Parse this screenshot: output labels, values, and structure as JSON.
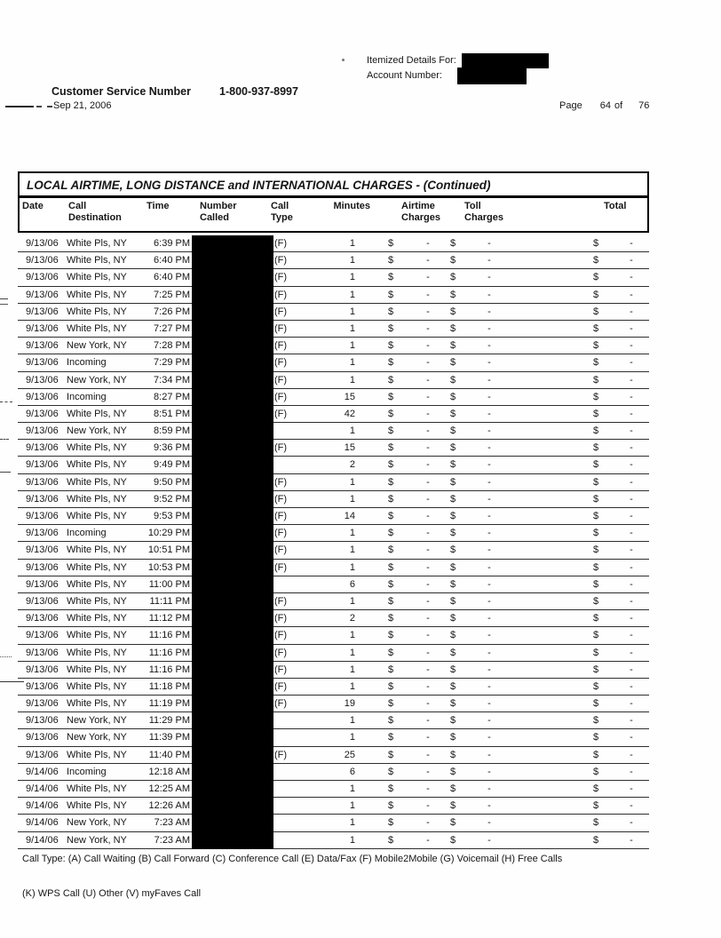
{
  "header": {
    "itemized_details_label": "Itemized Details For:",
    "account_number_label": "Account Number:",
    "customer_service_label": "Customer Service Number",
    "customer_service_number": "1-800-937-8997",
    "statement_date": "Sep 21, 2006",
    "pagination": {
      "label": "Page",
      "current": "64",
      "of": "of",
      "total": "76"
    }
  },
  "redactions": [
    "customer-name-block",
    "account-number-block",
    "numbers-called-column"
  ],
  "table": {
    "title": "LOCAL AIRTIME, LONG DISTANCE and INTERNATIONAL CHARGES  - (Continued)",
    "columns": [
      {
        "line1": "Date",
        "line2": ""
      },
      {
        "line1": "Call",
        "line2": "Destination"
      },
      {
        "line1": "Time",
        "line2": ""
      },
      {
        "line1": "Number",
        "line2": "Called"
      },
      {
        "line1": "Call",
        "line2": "Type"
      },
      {
        "line1": "Minutes",
        "line2": ""
      },
      {
        "line1": "Airtime",
        "line2": "Charges"
      },
      {
        "line1": "Toll",
        "line2": "Charges"
      },
      {
        "line1": "Total",
        "line2": ""
      }
    ],
    "rows": [
      {
        "date": "9/13/06",
        "destination": "White Pls, NY",
        "time": "6:39 PM",
        "type": "(F)",
        "minutes": "1",
        "airtime": [
          "$",
          "-"
        ],
        "toll": [
          "$",
          "-"
        ],
        "total": [
          "$",
          "-"
        ]
      },
      {
        "date": "9/13/06",
        "destination": "White Pls, NY",
        "time": "6:40 PM",
        "type": "(F)",
        "minutes": "1",
        "airtime": [
          "$",
          "-"
        ],
        "toll": [
          "$",
          "-"
        ],
        "total": [
          "$",
          "-"
        ]
      },
      {
        "date": "9/13/06",
        "destination": "White Pls, NY",
        "time": "6:40 PM",
        "type": "(F)",
        "minutes": "1",
        "airtime": [
          "$",
          "-"
        ],
        "toll": [
          "$",
          "-"
        ],
        "total": [
          "$",
          "-"
        ]
      },
      {
        "date": "9/13/06",
        "destination": "White Pls, NY",
        "time": "7:25 PM",
        "type": "(F)",
        "minutes": "1",
        "airtime": [
          "$",
          "-"
        ],
        "toll": [
          "$",
          "-"
        ],
        "total": [
          "$",
          "-"
        ]
      },
      {
        "date": "9/13/06",
        "destination": "White Pls, NY",
        "time": "7:26 PM",
        "type": "(F)",
        "minutes": "1",
        "airtime": [
          "$",
          "-"
        ],
        "toll": [
          "$",
          "-"
        ],
        "total": [
          "$",
          "-"
        ]
      },
      {
        "date": "9/13/06",
        "destination": "White Pls, NY",
        "time": "7:27 PM",
        "type": "(F)",
        "minutes": "1",
        "airtime": [
          "$",
          "-"
        ],
        "toll": [
          "$",
          "-"
        ],
        "total": [
          "$",
          "-"
        ]
      },
      {
        "date": "9/13/06",
        "destination": "New York, NY",
        "time": "7:28 PM",
        "type": "(F)",
        "minutes": "1",
        "airtime": [
          "$",
          "-"
        ],
        "toll": [
          "$",
          "-"
        ],
        "total": [
          "$",
          "-"
        ]
      },
      {
        "date": "9/13/06",
        "destination": "Incoming",
        "time": "7:29 PM",
        "type": "(F)",
        "minutes": "1",
        "airtime": [
          "$",
          "-"
        ],
        "toll": [
          "$",
          "-"
        ],
        "total": [
          "$",
          "-"
        ]
      },
      {
        "date": "9/13/06",
        "destination": "New York, NY",
        "time": "7:34 PM",
        "type": "(F)",
        "minutes": "1",
        "airtime": [
          "$",
          "-"
        ],
        "toll": [
          "$",
          "-"
        ],
        "total": [
          "$",
          "-"
        ]
      },
      {
        "date": "9/13/06",
        "destination": "Incoming",
        "time": "8:27 PM",
        "type": "(F)",
        "minutes": "15",
        "airtime": [
          "$",
          "-"
        ],
        "toll": [
          "$",
          "-"
        ],
        "total": [
          "$",
          "-"
        ]
      },
      {
        "date": "9/13/06",
        "destination": "White Pls, NY",
        "time": "8:51 PM",
        "type": "(F)",
        "minutes": "42",
        "airtime": [
          "$",
          "-"
        ],
        "toll": [
          "$",
          "-"
        ],
        "total": [
          "$",
          "-"
        ]
      },
      {
        "date": "9/13/06",
        "destination": "New York, NY",
        "time": "8:59 PM",
        "type": "",
        "minutes": "1",
        "airtime": [
          "$",
          "-"
        ],
        "toll": [
          "$",
          "-"
        ],
        "total": [
          "$",
          "-"
        ]
      },
      {
        "date": "9/13/06",
        "destination": "White Pls, NY",
        "time": "9:36 PM",
        "type": "(F)",
        "minutes": "15",
        "airtime": [
          "$",
          "-"
        ],
        "toll": [
          "$",
          "-"
        ],
        "total": [
          "$",
          "-"
        ]
      },
      {
        "date": "9/13/06",
        "destination": "White Pls, NY",
        "time": "9:49 PM",
        "type": "",
        "minutes": "2",
        "airtime": [
          "$",
          "-"
        ],
        "toll": [
          "$",
          "-"
        ],
        "total": [
          "$",
          "-"
        ]
      },
      {
        "date": "9/13/06",
        "destination": "White Pls, NY",
        "time": "9:50 PM",
        "type": "(F)",
        "minutes": "1",
        "airtime": [
          "$",
          "-"
        ],
        "toll": [
          "$",
          "-"
        ],
        "total": [
          "$",
          "-"
        ]
      },
      {
        "date": "9/13/06",
        "destination": "White Pls, NY",
        "time": "9:52 PM",
        "type": "(F)",
        "minutes": "1",
        "airtime": [
          "$",
          "-"
        ],
        "toll": [
          "$",
          "-"
        ],
        "total": [
          "$",
          "-"
        ]
      },
      {
        "date": "9/13/06",
        "destination": "White Pls, NY",
        "time": "9:53 PM",
        "type": "(F)",
        "minutes": "14",
        "airtime": [
          "$",
          "-"
        ],
        "toll": [
          "$",
          "-"
        ],
        "total": [
          "$",
          "-"
        ]
      },
      {
        "date": "9/13/06",
        "destination": "Incoming",
        "time": "10:29 PM",
        "type": "(F)",
        "minutes": "1",
        "airtime": [
          "$",
          "-"
        ],
        "toll": [
          "$",
          "-"
        ],
        "total": [
          "$",
          "-"
        ]
      },
      {
        "date": "9/13/06",
        "destination": "White Pls, NY",
        "time": "10:51 PM",
        "type": "(F)",
        "minutes": "1",
        "airtime": [
          "$",
          "-"
        ],
        "toll": [
          "$",
          "-"
        ],
        "total": [
          "$",
          "-"
        ]
      },
      {
        "date": "9/13/06",
        "destination": "White Pls, NY",
        "time": "10:53 PM",
        "type": "(F)",
        "minutes": "1",
        "airtime": [
          "$",
          "-"
        ],
        "toll": [
          "$",
          "-"
        ],
        "total": [
          "$",
          "-"
        ]
      },
      {
        "date": "9/13/06",
        "destination": "White Pls, NY",
        "time": "11:00 PM",
        "type": "",
        "minutes": "6",
        "airtime": [
          "$",
          "-"
        ],
        "toll": [
          "$",
          "-"
        ],
        "total": [
          "$",
          "-"
        ]
      },
      {
        "date": "9/13/06",
        "destination": "White Pls, NY",
        "time": "11:11 PM",
        "type": "(F)",
        "minutes": "1",
        "airtime": [
          "$",
          "-"
        ],
        "toll": [
          "$",
          "-"
        ],
        "total": [
          "$",
          "-"
        ]
      },
      {
        "date": "9/13/06",
        "destination": "White Pls, NY",
        "time": "11:12 PM",
        "type": "(F)",
        "minutes": "2",
        "airtime": [
          "$",
          "-"
        ],
        "toll": [
          "$",
          "-"
        ],
        "total": [
          "$",
          "-"
        ]
      },
      {
        "date": "9/13/06",
        "destination": "White Pls, NY",
        "time": "11:16 PM",
        "type": "(F)",
        "minutes": "1",
        "airtime": [
          "$",
          "-"
        ],
        "toll": [
          "$",
          "-"
        ],
        "total": [
          "$",
          "-"
        ]
      },
      {
        "date": "9/13/06",
        "destination": "White Pls, NY",
        "time": "11:16 PM",
        "type": "(F)",
        "minutes": "1",
        "airtime": [
          "$",
          "-"
        ],
        "toll": [
          "$",
          "-"
        ],
        "total": [
          "$",
          "-"
        ]
      },
      {
        "date": "9/13/06",
        "destination": "White Pls, NY",
        "time": "11:16 PM",
        "type": "(F)",
        "minutes": "1",
        "airtime": [
          "$",
          "-"
        ],
        "toll": [
          "$",
          "-"
        ],
        "total": [
          "$",
          "-"
        ]
      },
      {
        "date": "9/13/06",
        "destination": "White Pls, NY",
        "time": "11:18 PM",
        "type": "(F)",
        "minutes": "1",
        "airtime": [
          "$",
          "-"
        ],
        "toll": [
          "$",
          "-"
        ],
        "total": [
          "$",
          "-"
        ]
      },
      {
        "date": "9/13/06",
        "destination": "White Pls, NY",
        "time": "11:19 PM",
        "type": "(F)",
        "minutes": "19",
        "airtime": [
          "$",
          "-"
        ],
        "toll": [
          "$",
          "-"
        ],
        "total": [
          "$",
          "-"
        ]
      },
      {
        "date": "9/13/06",
        "destination": "New York, NY",
        "time": "11:29 PM",
        "type": "",
        "minutes": "1",
        "airtime": [
          "$",
          "-"
        ],
        "toll": [
          "$",
          "-"
        ],
        "total": [
          "$",
          "-"
        ]
      },
      {
        "date": "9/13/06",
        "destination": "New York, NY",
        "time": "11:39 PM",
        "type": "",
        "minutes": "1",
        "airtime": [
          "$",
          "-"
        ],
        "toll": [
          "$",
          "-"
        ],
        "total": [
          "$",
          "-"
        ]
      },
      {
        "date": "9/13/06",
        "destination": "White Pls, NY",
        "time": "11:40 PM",
        "type": "(F)",
        "minutes": "25",
        "airtime": [
          "$",
          "-"
        ],
        "toll": [
          "$",
          "-"
        ],
        "total": [
          "$",
          "-"
        ]
      },
      {
        "date": "9/14/06",
        "destination": "Incoming",
        "time": "12:18 AM",
        "type": "",
        "minutes": "6",
        "airtime": [
          "$",
          "-"
        ],
        "toll": [
          "$",
          "-"
        ],
        "total": [
          "$",
          "-"
        ]
      },
      {
        "date": "9/14/06",
        "destination": "White Pls, NY",
        "time": "12:25 AM",
        "type": "",
        "minutes": "1",
        "airtime": [
          "$",
          "-"
        ],
        "toll": [
          "$",
          "-"
        ],
        "total": [
          "$",
          "-"
        ]
      },
      {
        "date": "9/14/06",
        "destination": "White Pls, NY",
        "time": "12:26 AM",
        "type": "",
        "minutes": "1",
        "airtime": [
          "$",
          "-"
        ],
        "toll": [
          "$",
          "-"
        ],
        "total": [
          "$",
          "-"
        ]
      },
      {
        "date": "9/14/06",
        "destination": "New York, NY",
        "time": "7:23 AM",
        "type": "",
        "minutes": "1",
        "airtime": [
          "$",
          "-"
        ],
        "toll": [
          "$",
          "-"
        ],
        "total": [
          "$",
          "-"
        ]
      },
      {
        "date": "9/14/06",
        "destination": "New York, NY",
        "time": "7:23 AM",
        "type": "",
        "minutes": "1",
        "airtime": [
          "$",
          "-"
        ],
        "toll": [
          "$",
          "-"
        ],
        "total": [
          "$",
          "-"
        ]
      }
    ]
  },
  "footer": {
    "legend_line1": "Call Type: (A) Call Waiting (B) Call Forward (C) Conference Call (E) Data/Fax (F) Mobile2Mobile (G) Voicemail (H) Free Calls",
    "legend_line2": "(K) WPS Call (U) Other (V) myFaves Call"
  }
}
